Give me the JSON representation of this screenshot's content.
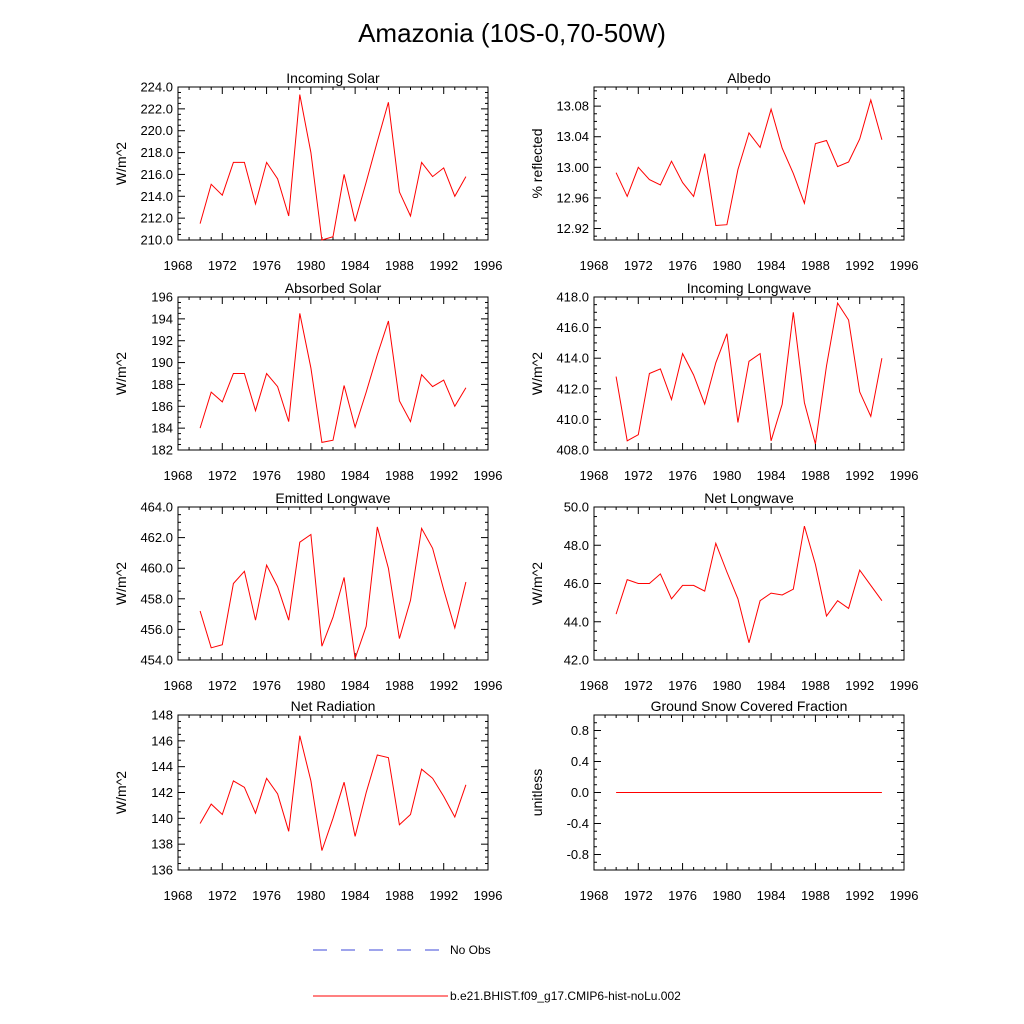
{
  "figure": {
    "title": "Amazonia (10S-0,70-50W)",
    "x_tick_labels": [
      "1968",
      "1972",
      "1976",
      "1980",
      "1984",
      "1988",
      "1992",
      "1996"
    ]
  },
  "legend": {
    "obs_label": "No Obs",
    "obs_color": "#3c4ad8",
    "model_label": "b.e21.BHIST.f09_g17.CMIP6-hist-noLu.002",
    "model_color": "#ff0000"
  },
  "chart_data": [
    {
      "type": "line",
      "title": "Incoming Solar",
      "xlabel": "",
      "ylabel": "W/m^2",
      "xlim": [
        1968,
        1996
      ],
      "ylim": [
        210,
        224
      ],
      "y_major_ticks": [
        "210.0",
        "212.0",
        "214.0",
        "216.0",
        "218.0",
        "220.0",
        "222.0",
        "224.0"
      ],
      "x": [
        1970,
        1971,
        1972,
        1973,
        1974,
        1975,
        1976,
        1977,
        1978,
        1979,
        1980,
        1981,
        1982,
        1983,
        1984,
        1985,
        1986,
        1987,
        1988,
        1989,
        1990,
        1991,
        1992,
        1993,
        1994
      ],
      "series": [
        {
          "name": "b.e21.BHIST.f09_g17.CMIP6-hist-noLu.002",
          "values": [
            211.5,
            215.1,
            214.1,
            217.1,
            217.1,
            213.3,
            217.1,
            215.6,
            212.2,
            223.3,
            218.0,
            210.0,
            210.3,
            216.0,
            211.7,
            215.3,
            219.0,
            222.6,
            214.4,
            212.2,
            217.1,
            215.8,
            216.6,
            214.0,
            215.8
          ]
        }
      ]
    },
    {
      "type": "line",
      "title": "Albedo",
      "xlabel": "",
      "ylabel": "% reflected",
      "xlim": [
        1968,
        1996
      ],
      "ylim": [
        12.905,
        13.105
      ],
      "y_major_ticks": [
        "12.92",
        "12.96",
        "13.00",
        "13.04",
        "13.08"
      ],
      "x": [
        1970,
        1971,
        1972,
        1973,
        1974,
        1975,
        1976,
        1977,
        1978,
        1979,
        1980,
        1981,
        1982,
        1983,
        1984,
        1985,
        1986,
        1987,
        1988,
        1989,
        1990,
        1991,
        1992,
        1993,
        1994
      ],
      "series": [
        {
          "name": "b.e21.BHIST.f09_g17.CMIP6-hist-noLu.002",
          "values": [
            12.993,
            12.962,
            13.0,
            12.984,
            12.977,
            13.008,
            12.98,
            12.962,
            13.018,
            12.924,
            12.925,
            12.997,
            13.045,
            13.026,
            13.076,
            13.025,
            12.992,
            12.953,
            13.031,
            13.035,
            13.001,
            13.007,
            13.037,
            13.088,
            13.036
          ]
        }
      ]
    },
    {
      "type": "line",
      "title": "Absorbed Solar",
      "xlabel": "",
      "ylabel": "W/m^2",
      "xlim": [
        1968,
        1996
      ],
      "ylim": [
        182,
        196
      ],
      "y_major_ticks": [
        "182",
        "184",
        "186",
        "188",
        "190",
        "192",
        "194",
        "196"
      ],
      "x": [
        1970,
        1971,
        1972,
        1973,
        1974,
        1975,
        1976,
        1977,
        1978,
        1979,
        1980,
        1981,
        1982,
        1983,
        1984,
        1985,
        1986,
        1987,
        1988,
        1989,
        1990,
        1991,
        1992,
        1993,
        1994
      ],
      "series": [
        {
          "name": "b.e21.BHIST.f09_g17.CMIP6-hist-noLu.002",
          "values": [
            184.0,
            187.3,
            186.4,
            189.0,
            189.0,
            185.6,
            189.0,
            187.8,
            184.6,
            194.5,
            189.5,
            182.7,
            182.9,
            187.9,
            184.1,
            187.3,
            190.7,
            193.8,
            186.5,
            184.6,
            188.9,
            187.8,
            188.4,
            186.0,
            187.7
          ]
        }
      ]
    },
    {
      "type": "line",
      "title": "Incoming Longwave",
      "xlabel": "",
      "ylabel": "W/m^2",
      "xlim": [
        1968,
        1996
      ],
      "ylim": [
        408,
        418
      ],
      "y_major_ticks": [
        "408.0",
        "410.0",
        "412.0",
        "414.0",
        "416.0",
        "418.0"
      ],
      "x": [
        1970,
        1971,
        1972,
        1973,
        1974,
        1975,
        1976,
        1977,
        1978,
        1979,
        1980,
        1981,
        1982,
        1983,
        1984,
        1985,
        1986,
        1987,
        1988,
        1989,
        1990,
        1991,
        1992,
        1993,
        1994
      ],
      "series": [
        {
          "name": "b.e21.BHIST.f09_g17.CMIP6-hist-noLu.002",
          "values": [
            412.8,
            408.6,
            409.0,
            413.0,
            413.3,
            411.3,
            414.3,
            412.9,
            411.0,
            413.7,
            415.6,
            409.8,
            413.8,
            414.3,
            408.6,
            411.0,
            417.0,
            411.1,
            408.4,
            413.5,
            417.6,
            416.5,
            411.8,
            410.2,
            414.0
          ]
        }
      ]
    },
    {
      "type": "line",
      "title": "Emitted Longwave",
      "xlabel": "",
      "ylabel": "W/m^2",
      "xlim": [
        1968,
        1996
      ],
      "ylim": [
        454,
        464
      ],
      "y_major_ticks": [
        "454.0",
        "456.0",
        "458.0",
        "460.0",
        "462.0",
        "464.0"
      ],
      "x": [
        1970,
        1971,
        1972,
        1973,
        1974,
        1975,
        1976,
        1977,
        1978,
        1979,
        1980,
        1981,
        1982,
        1983,
        1984,
        1985,
        1986,
        1987,
        1988,
        1989,
        1990,
        1991,
        1992,
        1993,
        1994
      ],
      "series": [
        {
          "name": "b.e21.BHIST.f09_g17.CMIP6-hist-noLu.002",
          "values": [
            457.2,
            454.8,
            455.0,
            459.0,
            459.8,
            456.6,
            460.2,
            458.8,
            456.6,
            461.7,
            462.2,
            454.9,
            456.8,
            459.4,
            454.1,
            456.2,
            462.7,
            460.0,
            455.4,
            457.9,
            462.6,
            461.3,
            458.6,
            456.1,
            459.1
          ]
        }
      ]
    },
    {
      "type": "line",
      "title": "Net Longwave",
      "xlabel": "",
      "ylabel": "W/m^2",
      "xlim": [
        1968,
        1996
      ],
      "ylim": [
        42,
        50
      ],
      "y_major_ticks": [
        "42.0",
        "44.0",
        "46.0",
        "48.0",
        "50.0"
      ],
      "x": [
        1970,
        1971,
        1972,
        1973,
        1974,
        1975,
        1976,
        1977,
        1978,
        1979,
        1980,
        1981,
        1982,
        1983,
        1984,
        1985,
        1986,
        1987,
        1988,
        1989,
        1990,
        1991,
        1992,
        1993,
        1994
      ],
      "series": [
        {
          "name": "b.e21.BHIST.f09_g17.CMIP6-hist-noLu.002",
          "values": [
            44.4,
            46.2,
            46.0,
            46.0,
            46.5,
            45.2,
            45.9,
            45.9,
            45.6,
            48.1,
            46.6,
            45.2,
            42.9,
            45.1,
            45.5,
            45.4,
            45.7,
            49.0,
            47.0,
            44.3,
            45.1,
            44.7,
            46.7,
            45.9,
            45.1
          ]
        }
      ]
    },
    {
      "type": "line",
      "title": "Net Radiation",
      "xlabel": "",
      "ylabel": "W/m^2",
      "xlim": [
        1968,
        1996
      ],
      "ylim": [
        136,
        148
      ],
      "y_major_ticks": [
        "136",
        "138",
        "140",
        "142",
        "144",
        "146",
        "148"
      ],
      "x": [
        1970,
        1971,
        1972,
        1973,
        1974,
        1975,
        1976,
        1977,
        1978,
        1979,
        1980,
        1981,
        1982,
        1983,
        1984,
        1985,
        1986,
        1987,
        1988,
        1989,
        1990,
        1991,
        1992,
        1993,
        1994
      ],
      "series": [
        {
          "name": "b.e21.BHIST.f09_g17.CMIP6-hist-noLu.002",
          "values": [
            139.6,
            141.1,
            140.3,
            142.9,
            142.4,
            140.4,
            143.1,
            141.9,
            139.0,
            146.4,
            142.9,
            137.5,
            140.0,
            142.8,
            138.6,
            142.0,
            144.9,
            144.7,
            139.5,
            140.3,
            143.8,
            143.1,
            141.7,
            140.1,
            142.6
          ]
        }
      ]
    },
    {
      "type": "line",
      "title": "Ground Snow Covered Fraction",
      "xlabel": "",
      "ylabel": "unitless",
      "xlim": [
        1968,
        1996
      ],
      "ylim": [
        -1.0,
        1.0
      ],
      "y_major_ticks": [
        "-0.8",
        "-0.4",
        "0.0",
        "0.4",
        "0.8"
      ],
      "x": [
        1970,
        1971,
        1972,
        1973,
        1974,
        1975,
        1976,
        1977,
        1978,
        1979,
        1980,
        1981,
        1982,
        1983,
        1984,
        1985,
        1986,
        1987,
        1988,
        1989,
        1990,
        1991,
        1992,
        1993,
        1994
      ],
      "series": [
        {
          "name": "b.e21.BHIST.f09_g17.CMIP6-hist-noLu.002",
          "values": [
            0,
            0,
            0,
            0,
            0,
            0,
            0,
            0,
            0,
            0,
            0,
            0,
            0,
            0,
            0,
            0,
            0,
            0,
            0,
            0,
            0,
            0,
            0,
            0,
            0
          ]
        }
      ]
    }
  ]
}
